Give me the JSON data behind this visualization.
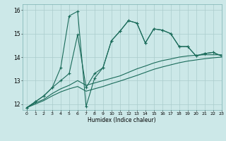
{
  "xlabel": "Humidex (Indice chaleur)",
  "xlim": [
    -0.5,
    23
  ],
  "ylim": [
    11.75,
    16.25
  ],
  "yticks": [
    12,
    13,
    14,
    15,
    16
  ],
  "xticks": [
    0,
    1,
    2,
    3,
    4,
    5,
    6,
    7,
    8,
    9,
    10,
    11,
    12,
    13,
    14,
    15,
    16,
    17,
    18,
    19,
    20,
    21,
    22,
    23
  ],
  "bg_color": "#cce8e8",
  "grid_color": "#aacccc",
  "line_color": "#1a6b5a",
  "line1_x": [
    0,
    1,
    2,
    3,
    4,
    5,
    6,
    7,
    8,
    9,
    10,
    11,
    12,
    13,
    14,
    15,
    16,
    17,
    18,
    19,
    20,
    21,
    22,
    23
  ],
  "line1_y": [
    11.85,
    12.1,
    12.35,
    12.7,
    13.55,
    15.75,
    15.95,
    11.9,
    13.1,
    13.55,
    14.7,
    15.1,
    15.55,
    15.45,
    14.6,
    15.2,
    15.15,
    15.0,
    14.45,
    14.45,
    14.05,
    14.15,
    14.2,
    14.05
  ],
  "line2_x": [
    0,
    1,
    2,
    3,
    4,
    5,
    6,
    7,
    8,
    9,
    10,
    11,
    12,
    13,
    14,
    15,
    16,
    17,
    18,
    19,
    20,
    21,
    22,
    23
  ],
  "line2_y": [
    11.85,
    12.1,
    12.35,
    12.7,
    13.0,
    13.3,
    14.95,
    12.7,
    13.3,
    13.55,
    14.7,
    15.1,
    15.55,
    15.45,
    14.6,
    15.2,
    15.15,
    15.0,
    14.45,
    14.45,
    14.05,
    14.15,
    14.2,
    14.05
  ],
  "line3_x": [
    0,
    1,
    2,
    3,
    4,
    5,
    6,
    7,
    8,
    9,
    10,
    11,
    12,
    13,
    14,
    15,
    16,
    17,
    18,
    19,
    20,
    21,
    22,
    23
  ],
  "line3_y": [
    11.85,
    12.05,
    12.2,
    12.45,
    12.65,
    12.8,
    13.0,
    12.8,
    12.9,
    13.0,
    13.1,
    13.2,
    13.35,
    13.5,
    13.62,
    13.75,
    13.85,
    13.92,
    14.0,
    14.05,
    14.08,
    14.1,
    14.1,
    14.1
  ],
  "line4_x": [
    0,
    1,
    2,
    3,
    4,
    5,
    6,
    7,
    8,
    9,
    10,
    11,
    12,
    13,
    14,
    15,
    16,
    17,
    18,
    19,
    20,
    21,
    22,
    23
  ],
  "line4_y": [
    11.85,
    12.0,
    12.15,
    12.35,
    12.52,
    12.65,
    12.75,
    12.55,
    12.65,
    12.75,
    12.87,
    12.98,
    13.1,
    13.22,
    13.35,
    13.48,
    13.58,
    13.67,
    13.76,
    13.83,
    13.88,
    13.93,
    13.97,
    14.0
  ]
}
